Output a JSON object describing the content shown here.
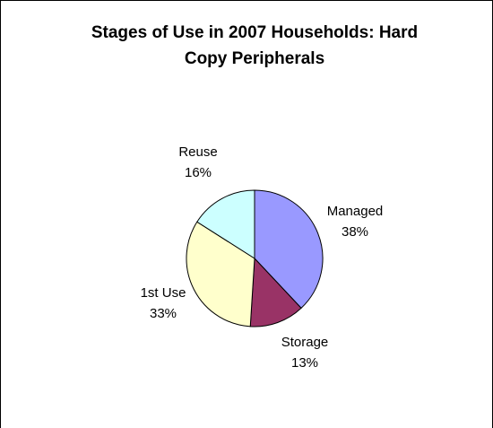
{
  "chart_data": {
    "type": "pie",
    "title_lines": [
      "Stages of Use in 2007 Households: Hard",
      "Copy Peripherals"
    ],
    "slices": [
      {
        "name": "Managed",
        "value": 38,
        "label": "38%",
        "color": "#9999FF"
      },
      {
        "name": "Storage",
        "value": 13,
        "label": "13%",
        "color": "#993366"
      },
      {
        "name": "1st Use",
        "value": 33,
        "label": "33%",
        "color": "#FFFFCC"
      },
      {
        "name": "Reuse",
        "value": 16,
        "label": "16%",
        "color": "#CCFFFF"
      }
    ],
    "legend": "none",
    "start": "12 o'clock, clockwise"
  }
}
